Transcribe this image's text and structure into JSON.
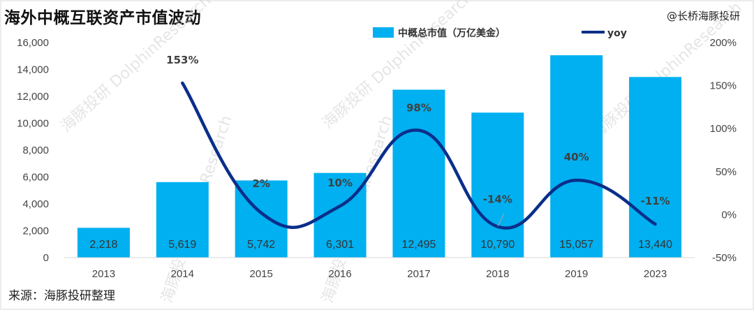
{
  "title": "海外中概互联资产市值波动",
  "brand": "@长桥海豚投研",
  "source": "来源：海豚投研整理",
  "watermark": "海豚投研 DolphinResearch",
  "chart_data": {
    "type": "bar",
    "categories": [
      "2013",
      "2014",
      "2015",
      "2016",
      "2017",
      "2018",
      "2019",
      "2023"
    ],
    "series": [
      {
        "name": "中概总市值（万亿美金）",
        "type": "bar",
        "axis": "left",
        "values": [
          2218,
          5619,
          5742,
          6301,
          12495,
          10790,
          15057,
          13440
        ],
        "labels": [
          "2,218",
          "5,619",
          "5,742",
          "6,301",
          "12,495",
          "10,790",
          "15,057",
          "13,440"
        ],
        "color": "#00b0f0"
      },
      {
        "name": "yoy",
        "type": "line",
        "axis": "right",
        "values": [
          null,
          153,
          2,
          10,
          98,
          -14,
          40,
          -11
        ],
        "labels": [
          "",
          "153%",
          "2%",
          "10%",
          "98%",
          "-14%",
          "40%",
          "-11%"
        ],
        "color": "#0a2e8a"
      }
    ],
    "ylim_left": [
      0,
      16000
    ],
    "yticks_left": [
      "0",
      "2,000",
      "4,000",
      "6,000",
      "8,000",
      "10,000",
      "12,000",
      "14,000",
      "16,000"
    ],
    "ylim_right": [
      -50,
      200
    ],
    "yticks_right": [
      "-50%",
      "0%",
      "50%",
      "100%",
      "150%",
      "200%"
    ],
    "legend_position": "top",
    "grid": false
  }
}
